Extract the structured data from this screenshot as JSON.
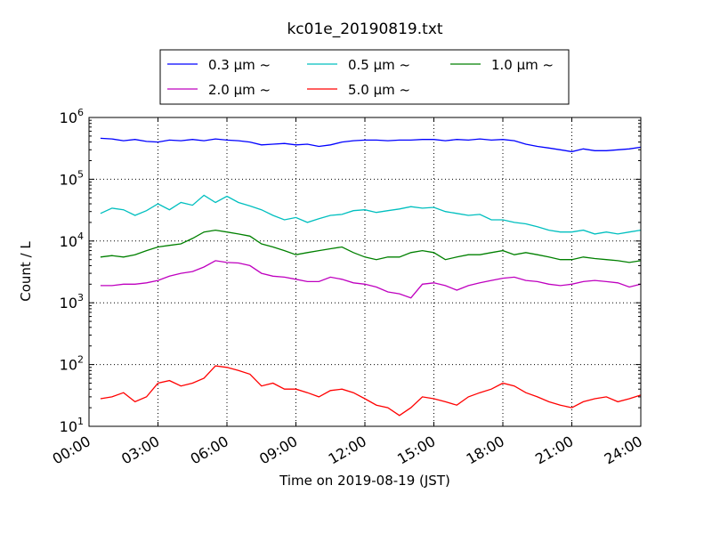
{
  "chart_data": {
    "type": "line",
    "title": "kc01e_20190819.txt",
    "xlabel": "Time on 2019-08-19 (JST)",
    "ylabel": "Count / L",
    "yscale": "log",
    "ylim": [
      10,
      1000000
    ],
    "xlim": [
      "00:00",
      "24:00"
    ],
    "grid": true,
    "legend_position": "top",
    "x_ticks": [
      "00:00",
      "03:00",
      "06:00",
      "09:00",
      "12:00",
      "15:00",
      "18:00",
      "21:00",
      "24:00"
    ],
    "y_ticks": [
      {
        "base": "10",
        "exp": "1"
      },
      {
        "base": "10",
        "exp": "2"
      },
      {
        "base": "10",
        "exp": "3"
      },
      {
        "base": "10",
        "exp": "4"
      },
      {
        "base": "10",
        "exp": "5"
      },
      {
        "base": "10",
        "exp": "6"
      }
    ],
    "x_hours": [
      0.5,
      1,
      1.5,
      2,
      2.5,
      3,
      3.5,
      4,
      4.5,
      5,
      5.5,
      6,
      6.5,
      7,
      7.5,
      8,
      8.5,
      9,
      9.5,
      10,
      10.5,
      11,
      11.5,
      12,
      12.5,
      13,
      13.5,
      14,
      14.5,
      15,
      15.5,
      16,
      16.5,
      17,
      17.5,
      18,
      18.5,
      19,
      19.5,
      20,
      20.5,
      21,
      21.5,
      22,
      22.5,
      23,
      23.5,
      24
    ],
    "series": [
      {
        "name": "0.3 μm ~",
        "color": "#0000ff",
        "values": [
          460000,
          450000,
          420000,
          440000,
          410000,
          400000,
          430000,
          420000,
          440000,
          420000,
          450000,
          430000,
          420000,
          400000,
          360000,
          370000,
          380000,
          360000,
          370000,
          340000,
          360000,
          400000,
          420000,
          430000,
          430000,
          420000,
          430000,
          430000,
          440000,
          440000,
          420000,
          440000,
          430000,
          450000,
          430000,
          440000,
          420000,
          370000,
          340000,
          320000,
          300000,
          280000,
          310000,
          290000,
          290000,
          300000,
          310000,
          330000
        ]
      },
      {
        "name": "0.5 μm ~",
        "color": "#00bfbf",
        "values": [
          28000,
          34000,
          32000,
          26000,
          31000,
          40000,
          32000,
          42000,
          38000,
          55000,
          42000,
          53000,
          42000,
          37000,
          32000,
          26000,
          22000,
          24000,
          20000,
          23000,
          26000,
          27000,
          31000,
          32000,
          29000,
          31000,
          33000,
          36000,
          34000,
          35000,
          30000,
          28000,
          26000,
          27000,
          22000,
          22000,
          20000,
          19000,
          17000,
          15000,
          14000,
          14000,
          15000,
          13000,
          14000,
          13000,
          14000,
          15000
        ]
      },
      {
        "name": "1.0 μm ~",
        "color": "#008000",
        "values": [
          5500,
          5800,
          5500,
          6000,
          7000,
          8000,
          8500,
          9000,
          11000,
          14000,
          15000,
          14000,
          13000,
          12000,
          9000,
          8000,
          7000,
          6000,
          6500,
          7000,
          7500,
          8000,
          6500,
          5500,
          5000,
          5500,
          5500,
          6500,
          7000,
          6500,
          5000,
          5500,
          6000,
          6000,
          6500,
          7000,
          6000,
          6500,
          6000,
          5500,
          5000,
          5000,
          5500,
          5200,
          5000,
          4800,
          4500,
          4800
        ]
      },
      {
        "name": "2.0 μm ~",
        "color": "#bf00bf",
        "values": [
          1900,
          1900,
          2000,
          2000,
          2100,
          2300,
          2700,
          3000,
          3200,
          3800,
          4800,
          4500,
          4400,
          4000,
          3000,
          2700,
          2600,
          2400,
          2200,
          2200,
          2600,
          2400,
          2100,
          2000,
          1800,
          1500,
          1400,
          1200,
          2000,
          2100,
          1900,
          1600,
          1900,
          2100,
          2300,
          2500,
          2600,
          2300,
          2200,
          2000,
          1900,
          2000,
          2200,
          2300,
          2200,
          2100,
          1800,
          2000
        ]
      },
      {
        "name": "5.0 μm ~",
        "color": "#ff0000",
        "values": [
          28,
          30,
          35,
          25,
          30,
          50,
          55,
          45,
          50,
          60,
          95,
          90,
          80,
          70,
          45,
          50,
          40,
          40,
          35,
          30,
          38,
          40,
          35,
          28,
          22,
          20,
          15,
          20,
          30,
          28,
          25,
          22,
          30,
          35,
          40,
          50,
          45,
          35,
          30,
          25,
          22,
          20,
          25,
          28,
          30,
          25,
          28,
          32
        ]
      }
    ]
  }
}
